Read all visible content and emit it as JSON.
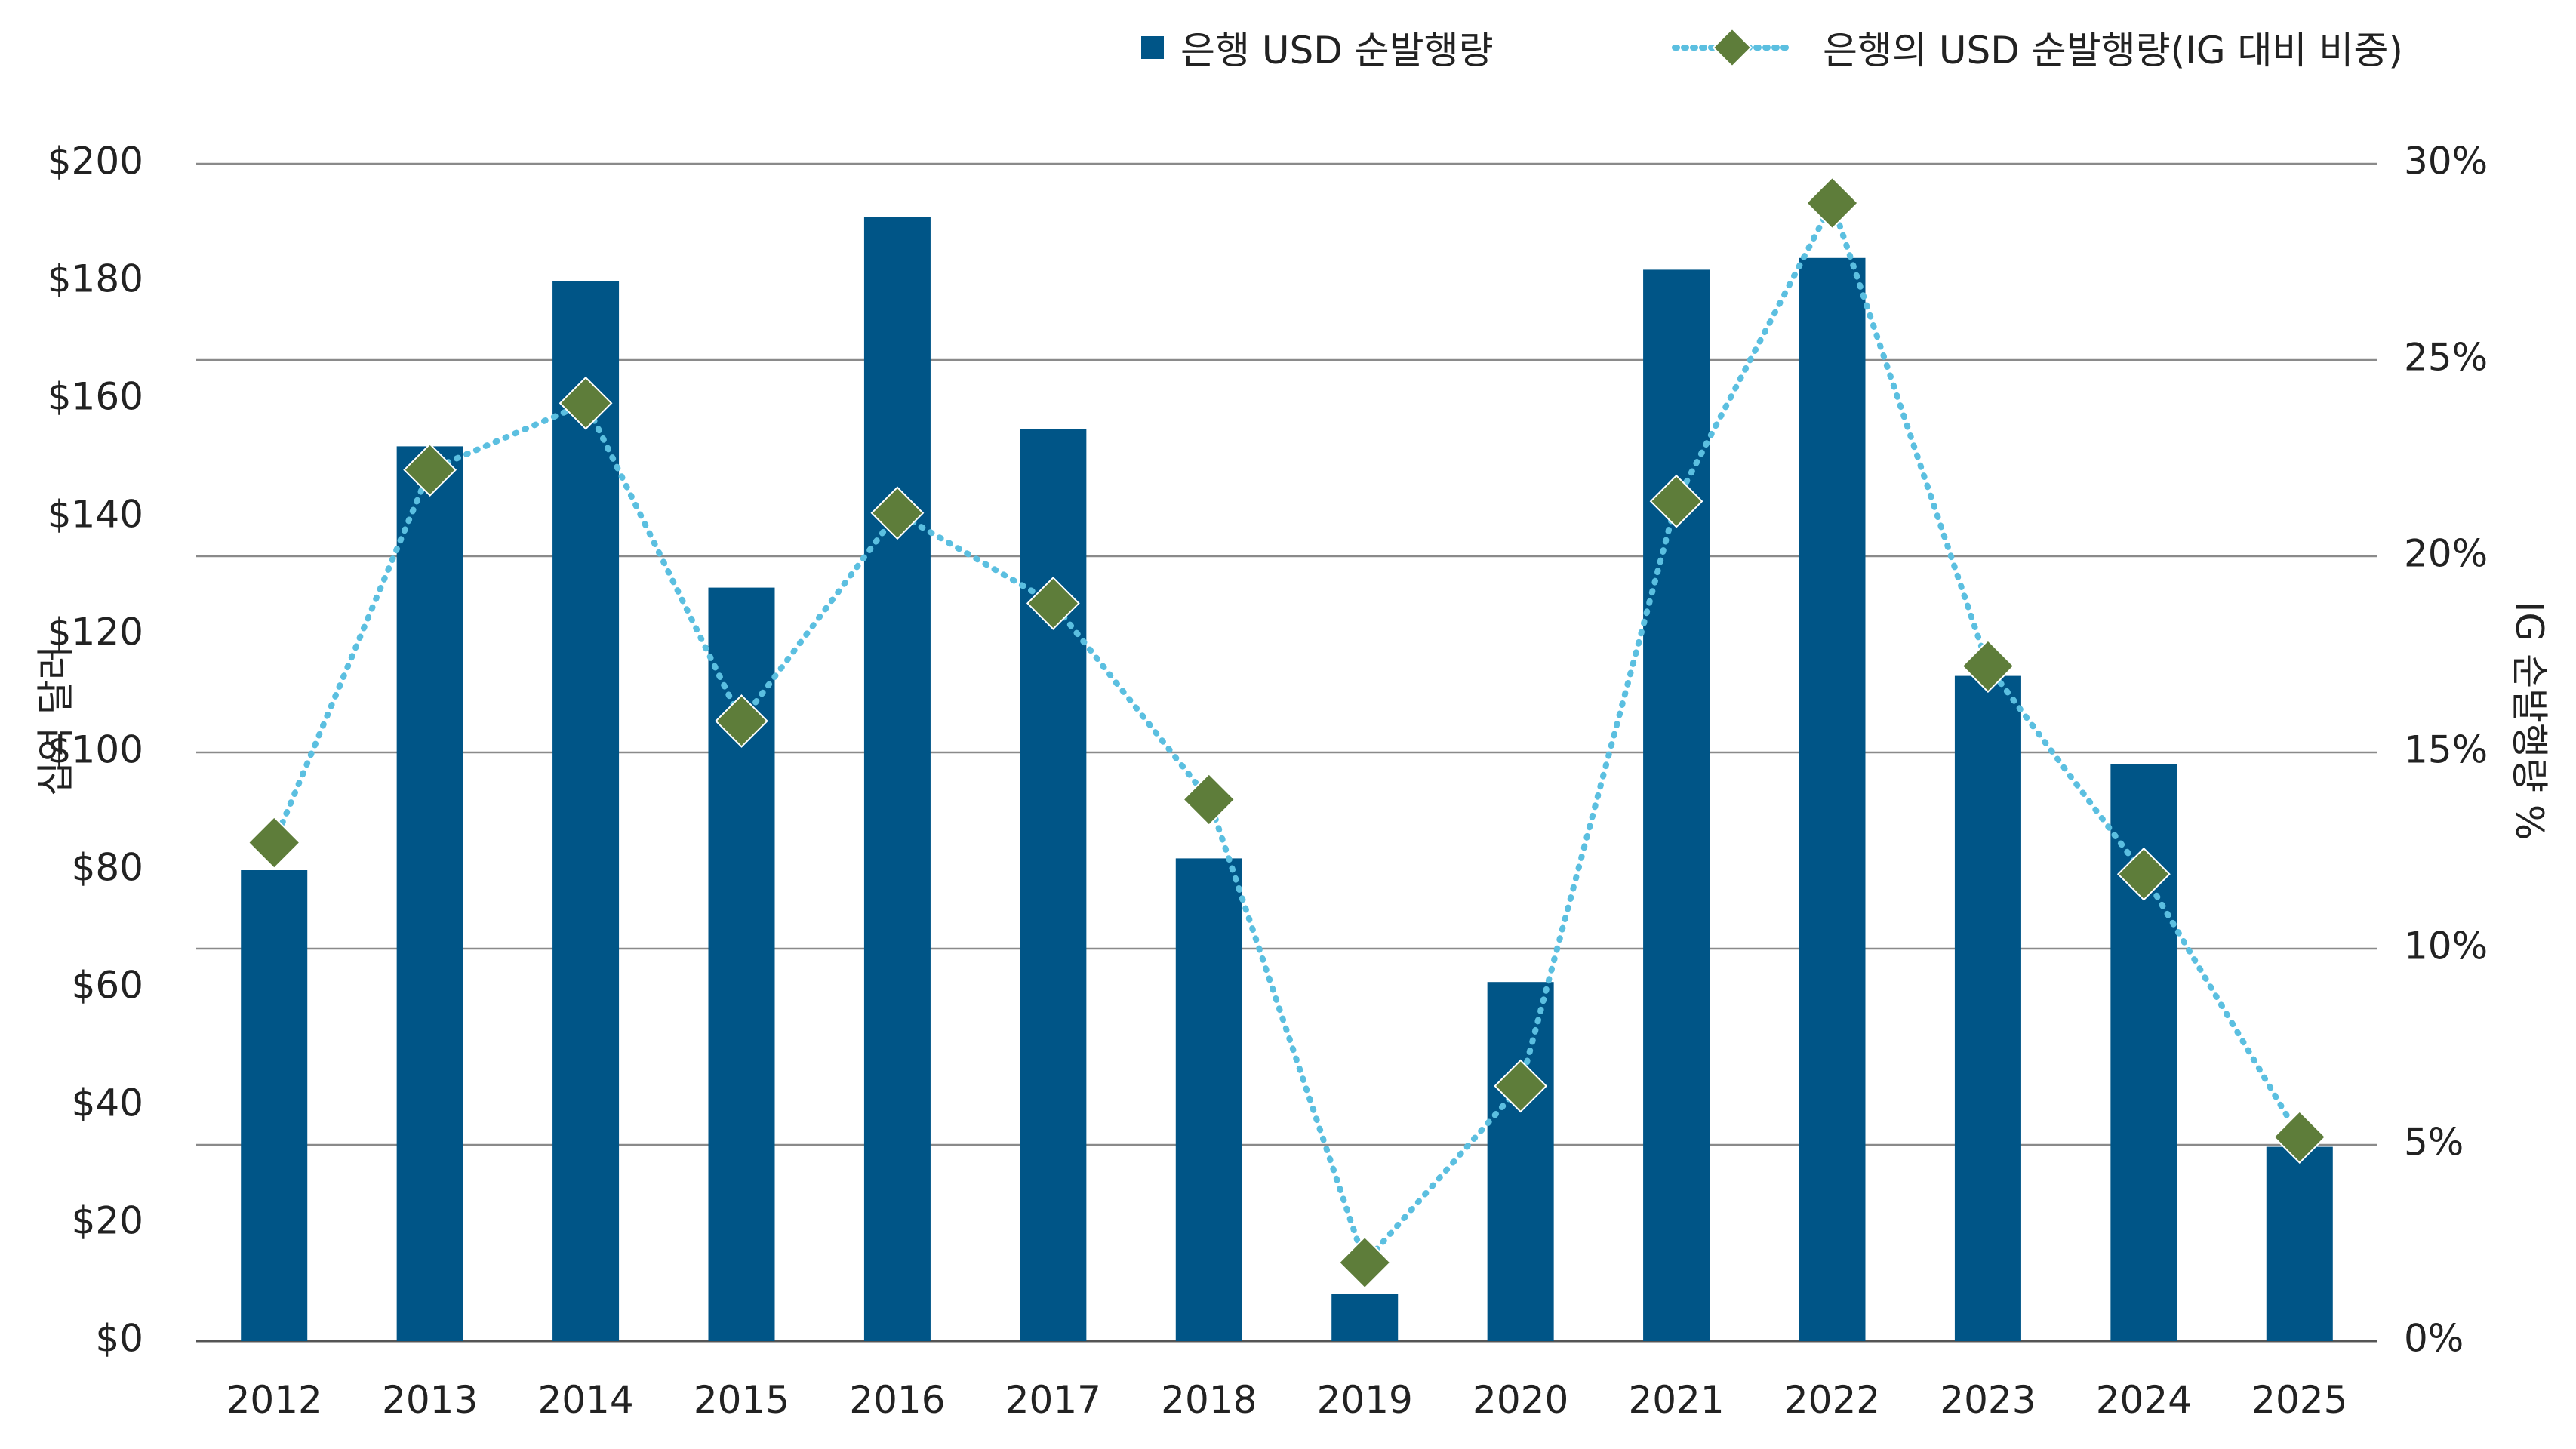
{
  "chart_data": {
    "type": "bar+line",
    "categories": [
      "2012",
      "2013",
      "2014",
      "2015",
      "2016",
      "2017",
      "2018",
      "2019",
      "2020",
      "2021",
      "2022",
      "2023",
      "2024",
      "2025"
    ],
    "series": [
      {
        "name": "은행 USD 순발행량",
        "type": "bar",
        "axis": "left",
        "color": "#005587",
        "values": [
          80,
          152,
          180,
          128,
          191,
          155,
          82,
          8,
          61,
          182,
          184,
          113,
          98,
          33
        ]
      },
      {
        "name": "은행의 USD 순발행량(IG 대비 비중)",
        "type": "line",
        "axis": "right",
        "line_color": "#5bbfe0",
        "marker_color": "#5e7d3a",
        "values": [
          12.7,
          22.2,
          23.9,
          15.8,
          21.1,
          18.8,
          13.8,
          2.0,
          6.5,
          21.4,
          29.0,
          17.2,
          11.9,
          5.2
        ]
      }
    ],
    "y_left": {
      "label": "십억 달러",
      "range": [
        0,
        200
      ],
      "ticks": [
        "$0",
        "$20",
        "$40",
        "$60",
        "$80",
        "$100",
        "$120",
        "$140",
        "$160",
        "$180",
        "$200"
      ]
    },
    "y_right": {
      "label": "IG 순발행량 %",
      "range": [
        0,
        30
      ],
      "ticks": [
        "0%",
        "5%",
        "10%",
        "15%",
        "20%",
        "25%",
        "30%"
      ]
    },
    "legend": {
      "position": "top-right",
      "items": [
        "은행 USD 순발행량",
        "은행의 USD 순발행량(IG 대비 비중)"
      ]
    }
  }
}
